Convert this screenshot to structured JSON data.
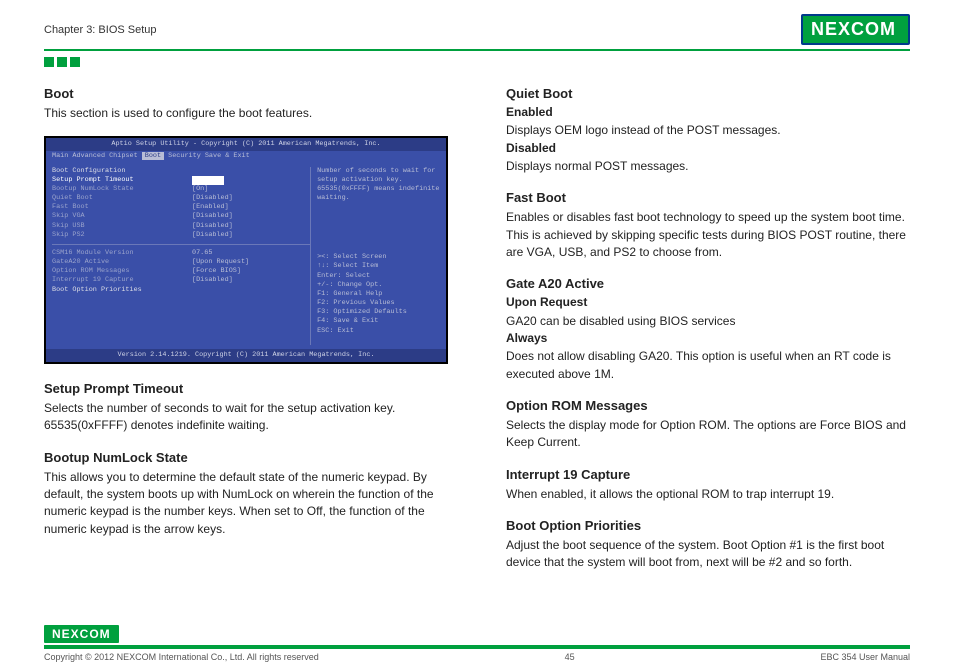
{
  "header": {
    "chapter": "Chapter 3: BIOS Setup",
    "logo": "NEXCOM"
  },
  "left": {
    "boot_h": "Boot",
    "boot_p": "This section is used to configure the boot features.",
    "bios": {
      "title": "Aptio Setup Utility - Copyright (C) 2011 American Megatrends, Inc.",
      "tabs_pre": "Main  Advanced  Chipset  ",
      "tabs_sel": "Boot",
      "tabs_post": "  Security  Save & Exit",
      "left_rows": [
        {
          "label": "Boot Configuration",
          "val": "",
          "head": true
        },
        {
          "label": "Setup Prompt Timeout",
          "val": "1",
          "sel": true,
          "hl": true
        },
        {
          "label": "Bootup NumLock State",
          "val": "[On]"
        },
        {
          "label": "",
          "val": ""
        },
        {
          "label": "Quiet Boot",
          "val": "[Disabled]"
        },
        {
          "label": "Fast Boot",
          "val": "[Enabled]"
        },
        {
          "label": "  Skip VGA",
          "val": "[Disabled]"
        },
        {
          "label": "  Skip USB",
          "val": "[Disabled]"
        },
        {
          "label": "  Skip PS2",
          "val": "[Disabled]"
        },
        {
          "label": "",
          "val": "",
          "hr": true
        },
        {
          "label": "CSM16 Module Version",
          "val": "07.65"
        },
        {
          "label": "",
          "val": ""
        },
        {
          "label": "GateA20 Active",
          "val": "[Upon Request]"
        },
        {
          "label": "Option ROM Messages",
          "val": "[Force BIOS]"
        },
        {
          "label": "Interrupt 19 Capture",
          "val": "[Disabled]"
        },
        {
          "label": "",
          "val": ""
        },
        {
          "label": "Boot Option Priorities",
          "val": "",
          "head": true
        }
      ],
      "right_help": "Number of seconds to wait for setup activation key. 65535(0xFFFF) means indefinite waiting.",
      "right_keys": [
        "><: Select Screen",
        "↑↓: Select Item",
        "Enter: Select",
        "+/-: Change Opt.",
        "F1: General Help",
        "F2: Previous Values",
        "F3: Optimized Defaults",
        "F4: Save & Exit",
        "ESC: Exit"
      ],
      "footer": "Version 2.14.1219. Copyright (C) 2011 American Megatrends, Inc."
    },
    "spt_h": "Setup Prompt Timeout",
    "spt_p": "Selects the number of seconds to wait for the setup activation key. 65535(0xFFFF) denotes indefinite waiting.",
    "bnl_h": "Bootup NumLock State",
    "bnl_p": "This allows you to determine the default state of the numeric keypad. By default, the system boots up with NumLock on wherein the function of the numeric keypad is the number keys. When set to Off, the function of the numeric keypad is the arrow keys."
  },
  "right": {
    "qb_h": "Quiet Boot",
    "qb_en_l": "Enabled",
    "qb_en_p": "Displays OEM logo instead of the POST messages.",
    "qb_dis_l": "Disabled",
    "qb_dis_p": "Displays normal POST messages.",
    "fb_h": "Fast Boot",
    "fb_p": "Enables or disables fast boot technology to speed up the system boot time. This is achieved by skipping specific tests during BIOS POST routine, there are VGA, USB, and PS2 to choose from.",
    "ga_h": "Gate A20 Active",
    "ga_ur_l": "Upon Request",
    "ga_ur_p": "GA20 can be disabled using BIOS services",
    "ga_al_l": "Always",
    "ga_al_p": "Does not allow disabling GA20. This option is useful when an RT code is executed above 1M.",
    "orm_h": "Option ROM Messages",
    "orm_p": "Selects the display mode for Option ROM. The options are Force BIOS and Keep Current.",
    "i19_h": "Interrupt 19 Capture",
    "i19_p": "When enabled, it allows the optional ROM to trap interrupt 19.",
    "bop_h": "Boot Option Priorities",
    "bop_p": "Adjust the boot sequence of the system. Boot Option #1 is the first boot device that the system will boot from, next will be #2 and so forth."
  },
  "footer": {
    "logo": "NEXCOM",
    "copyright": "Copyright © 2012 NEXCOM International Co., Ltd. All rights reserved",
    "page": "45",
    "manual": "EBC 354 User Manual"
  },
  "colors": {
    "green": "#00a03e",
    "bios_bg": "#3a4fa8",
    "bios_bar": "#2c3c86"
  }
}
